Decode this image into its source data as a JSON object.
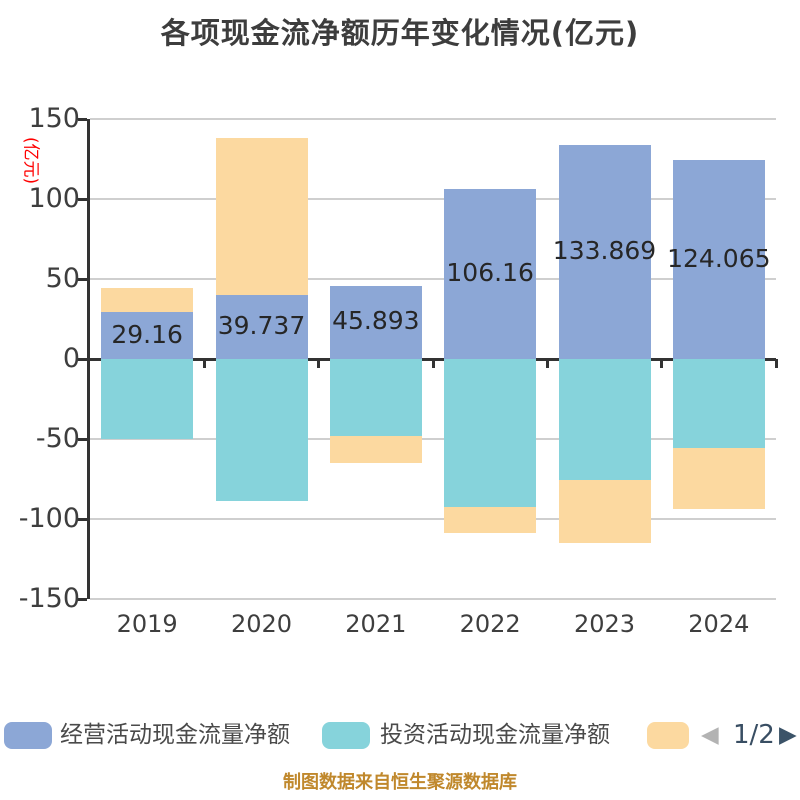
{
  "title": "各项现金流净额历年变化情况(亿元)",
  "y_axis_name": "(亿元)",
  "footer": "制图数据来自恒生聚源数据库",
  "legend": {
    "items": [
      {
        "label": "经营活动现金流量净额",
        "color": "#8ca7d6"
      },
      {
        "label": "投资活动现金流量净额",
        "color": "#86d3db"
      },
      {
        "label": "",
        "color": "#fcd9a0"
      }
    ],
    "pagination": {
      "current": "1/2",
      "prev_icon": "◀",
      "next_icon": "▶"
    }
  },
  "chart_data": {
    "type": "bar",
    "stacked": true,
    "title": "各项现金流净额历年变化情况(亿元)",
    "ylabel": "(亿元)",
    "categories": [
      "2019",
      "2020",
      "2021",
      "2022",
      "2023",
      "2024"
    ],
    "series": [
      {
        "name": "经营活动现金流量净额",
        "color": "#8ca7d6",
        "values": [
          29.16,
          39.737,
          45.893,
          106.16,
          133.869,
          124.065
        ]
      },
      {
        "name": "投资活动现金流量净额",
        "color": "#86d3db",
        "values": [
          -49.8,
          -88.6,
          -48.0,
          -92.3,
          -75.8,
          -55.8
        ]
      },
      {
        "name": "",
        "color": "#fcd9a0",
        "values": [
          15.5,
          98.4,
          -17.2,
          -16.6,
          -39.4,
          -38.2
        ]
      }
    ],
    "bar_labels": [
      "29.16",
      "39.737",
      "45.893",
      "106.16",
      "133.869",
      "124.065"
    ],
    "ylim": [
      -150,
      150
    ],
    "yticks": [
      150,
      100,
      50,
      0,
      -50,
      -100,
      -150
    ],
    "grid": true,
    "legend_position": "bottom",
    "colors": {
      "axis": "#333333",
      "gridline": "#cfcfcf",
      "tick_text": "#3e3e3e",
      "ylabel_text": "#ff0000",
      "data_label": "#262626",
      "footer_text": "#c0882c"
    }
  }
}
